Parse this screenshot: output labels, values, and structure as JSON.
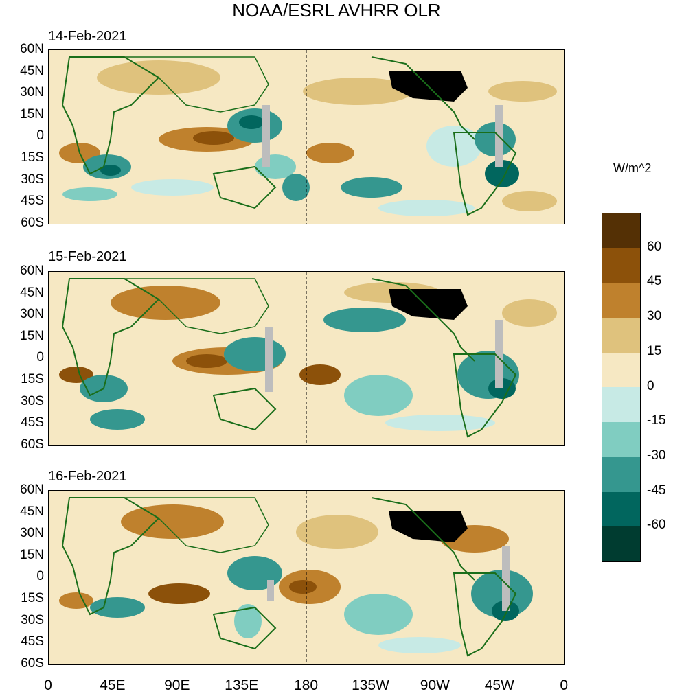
{
  "title": "NOAA/ESRL AVHRR OLR",
  "panels": [
    {
      "date": "14-Feb-2021"
    },
    {
      "date": "15-Feb-2021"
    },
    {
      "date": "16-Feb-2021"
    }
  ],
  "lat_ticks": [
    "60N",
    "45N",
    "30N",
    "15N",
    "0",
    "15S",
    "30S",
    "45S",
    "60S"
  ],
  "lon_ticks": [
    "0",
    "45E",
    "90E",
    "135E",
    "180",
    "135W",
    "90W",
    "45W",
    "0"
  ],
  "colorbar": {
    "unit": "W/m^2",
    "labels": [
      "60",
      "45",
      "30",
      "15",
      "0",
      "-15",
      "-30",
      "-45",
      "-60"
    ],
    "colors": [
      "#543005",
      "#8c510a",
      "#bf812d",
      "#dfc27d",
      "#f6e8c3",
      "#c7eae5",
      "#80cdc1",
      "#35978f",
      "#01665e",
      "#003c30"
    ]
  },
  "colors": {
    "coastline": "#1a6e1a",
    "missing": "#bdbdbd",
    "land_mask": "#000000"
  }
}
